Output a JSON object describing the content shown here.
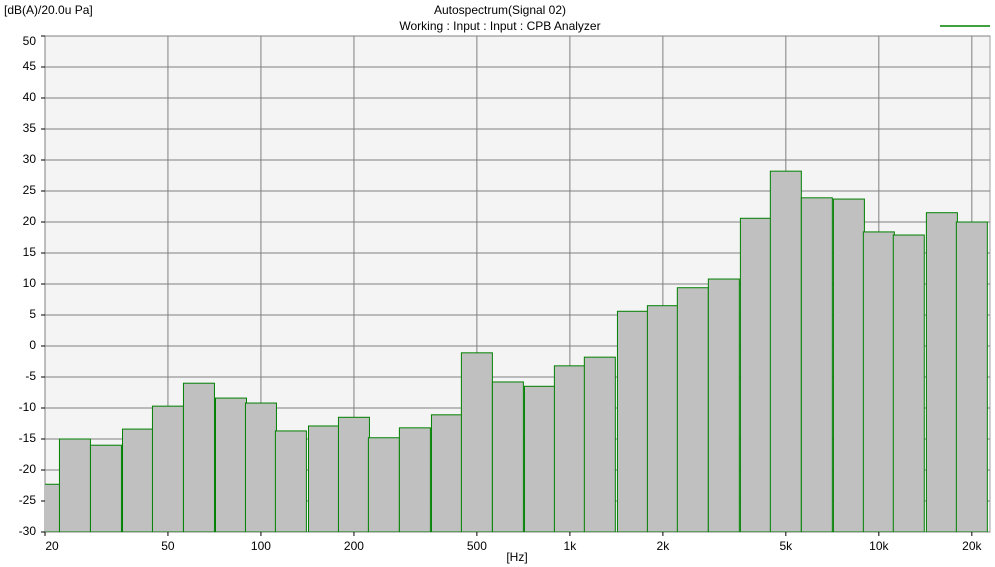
{
  "chart_data": {
    "type": "bar",
    "title": "Autospectrum(Signal 02)",
    "subtitle": "Working : Input : Input : CPB Analyzer",
    "y_label": "[dB(A)/20.0u Pa]",
    "x_label": "[Hz]",
    "x_log": true,
    "grid": true,
    "legend": "top-right",
    "xlim": [
      20,
      22900
    ],
    "ylim": [
      -30,
      50
    ],
    "xticks": [
      20,
      50,
      100,
      200,
      500,
      {
        "value": 1000,
        "label": "1k"
      },
      {
        "value": 2000,
        "label": "2k"
      },
      {
        "value": 5000,
        "label": "5k"
      },
      {
        "value": 10000,
        "label": "10k"
      },
      {
        "value": 20000,
        "label": "20k"
      }
    ],
    "yticks": [
      -30,
      -25,
      -20,
      -15,
      -10,
      -5,
      0,
      5,
      10,
      15,
      20,
      25,
      30,
      35,
      40,
      45,
      50
    ],
    "x": [
      20,
      25,
      31.5,
      40,
      50,
      63,
      80,
      100,
      125,
      160,
      200,
      250,
      315,
      400,
      500,
      630,
      800,
      1000,
      1250,
      1600,
      2000,
      2500,
      3150,
      4000,
      5000,
      6300,
      8000,
      10000,
      12500,
      16000,
      20000
    ],
    "series": [
      {
        "color": "#008000",
        "values": [
          -22.3,
          -15.0,
          -16.0,
          -13.4,
          -9.7,
          -6.0,
          -8.4,
          -9.2,
          -13.7,
          -12.9,
          -11.5,
          -14.8,
          -13.2,
          -11.1,
          -1.1,
          -5.8,
          -6.5,
          -3.2,
          -1.8,
          5.6,
          6.5,
          9.4,
          10.8,
          20.6,
          28.2,
          23.9,
          23.7,
          18.4,
          17.9,
          21.5,
          20.0
        ]
      }
    ]
  }
}
